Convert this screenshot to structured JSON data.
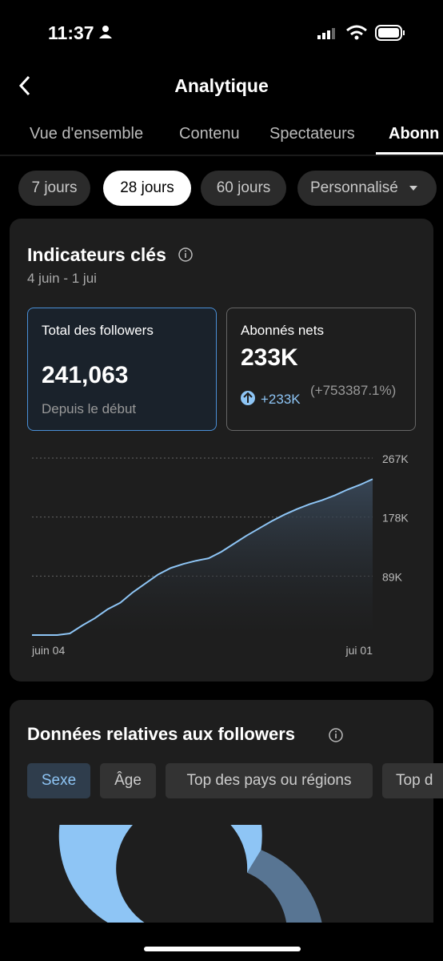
{
  "status": {
    "time": "11:37"
  },
  "header": {
    "title": "Analytique"
  },
  "tabs": [
    "Vue d'ensemble",
    "Contenu",
    "Spectateurs",
    "Abonn"
  ],
  "periods": [
    "7 jours",
    "28 jours",
    "60 jours",
    "Personnalisé"
  ],
  "key_metrics": {
    "title": "Indicateurs clés",
    "date_range": "4 juin - 1 jui",
    "total": {
      "label": "Total des followers",
      "value": "241,063",
      "note": "Depuis le début"
    },
    "net": {
      "label": "Abonnés nets",
      "value": "233K",
      "change": "+233K",
      "percent": "(+753387.1%)"
    }
  },
  "chart_data": {
    "type": "area",
    "color": "#8ec5f5",
    "categories": [
      "juin 04",
      null,
      null,
      null,
      null,
      null,
      null,
      null,
      null,
      null,
      null,
      null,
      null,
      null,
      null,
      null,
      null,
      null,
      null,
      null,
      null,
      null,
      null,
      null,
      null,
      null,
      null,
      "jui 01"
    ],
    "values": [
      0,
      0,
      0,
      2400,
      14600,
      25600,
      39000,
      48800,
      64600,
      78000,
      91400,
      101200,
      107300,
      112100,
      115800,
      125500,
      137700,
      149900,
      160900,
      171900,
      181600,
      190100,
      197400,
      203500,
      210800,
      219400,
      226700,
      235300
    ],
    "ylim": [
      0,
      267000
    ],
    "yticks": [
      {
        "value": 89000,
        "label": "89K"
      },
      {
        "value": 178000,
        "label": "178K"
      },
      {
        "value": 267000,
        "label": "267K"
      }
    ],
    "grid": true
  },
  "followers_data": {
    "title": "Données relatives aux followers",
    "tabs": [
      "Sexe",
      "Âge",
      "Top des pays ou régions",
      "Top d"
    ]
  }
}
